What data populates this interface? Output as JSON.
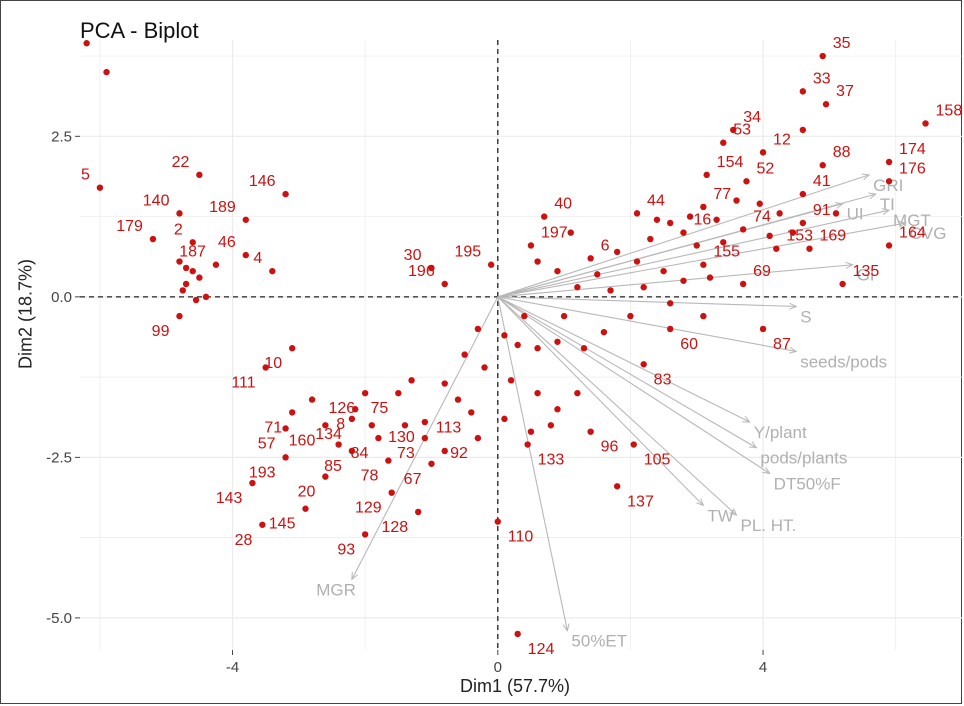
{
  "chart_data": {
    "type": "scatter",
    "title": "PCA - Biplot",
    "xlabel": "Dim1 (57.7%)",
    "ylabel": "Dim2 (18.7%)",
    "xlim": [
      -6.3,
      7.0
    ],
    "ylim": [
      -5.5,
      4.0
    ],
    "xticks": [
      -4,
      0,
      4
    ],
    "yticks": [
      -5.0,
      -2.5,
      0.0,
      2.5
    ],
    "ytick_labels": [
      "-5.0",
      "-2.5",
      "0.0",
      "2.5"
    ],
    "grid": true,
    "reference_lines": {
      "x": 0,
      "y": 0
    },
    "colors": {
      "points": "#cc1111",
      "vectors": "#b8b8b8",
      "point_labels": "#cc1111",
      "grid": "#ebebeb"
    },
    "points": [
      {
        "label": "35",
        "x": 4.9,
        "y": 3.75
      },
      {
        "label": "33",
        "x": 4.6,
        "y": 3.2
      },
      {
        "label": "37",
        "x": 4.95,
        "y": 3.0
      },
      {
        "label": "158",
        "x": 6.45,
        "y": 2.7
      },
      {
        "label": "34",
        "x": 3.55,
        "y": 2.6
      },
      {
        "label": "53",
        "x": 3.4,
        "y": 2.4
      },
      {
        "label": "12",
        "x": 4.0,
        "y": 2.25
      },
      {
        "label": "88",
        "x": 4.9,
        "y": 2.05
      },
      {
        "label": "174",
        "x": 5.9,
        "y": 2.1
      },
      {
        "label": "154",
        "x": 3.15,
        "y": 1.9
      },
      {
        "label": "52",
        "x": 3.75,
        "y": 1.8
      },
      {
        "label": "41",
        "x": 4.6,
        "y": 1.6
      },
      {
        "label": "176",
        "x": 5.9,
        "y": 1.8
      },
      {
        "label": "77",
        "x": 3.1,
        "y": 1.4
      },
      {
        "label": "44",
        "x": 2.1,
        "y": 1.3
      },
      {
        "label": "91",
        "x": 4.6,
        "y": 1.15
      },
      {
        "label": "74",
        "x": 3.7,
        "y": 1.05
      },
      {
        "label": "16",
        "x": 2.8,
        "y": 1.0
      },
      {
        "label": "153",
        "x": 4.2,
        "y": 0.75
      },
      {
        "label": "169",
        "x": 4.7,
        "y": 0.75
      },
      {
        "label": "164",
        "x": 5.9,
        "y": 0.8
      },
      {
        "label": "155",
        "x": 3.1,
        "y": 0.5
      },
      {
        "label": "69",
        "x": 3.7,
        "y": 0.2
      },
      {
        "label": "135",
        "x": 5.2,
        "y": 0.2
      },
      {
        "label": "40",
        "x": 0.7,
        "y": 1.25
      },
      {
        "label": "197",
        "x": 0.5,
        "y": 0.8
      },
      {
        "label": "6",
        "x": 1.4,
        "y": 0.6
      },
      {
        "label": "195",
        "x": -0.1,
        "y": 0.5
      },
      {
        "label": "30",
        "x": -1.0,
        "y": 0.45
      },
      {
        "label": "196",
        "x": -0.8,
        "y": 0.2
      },
      {
        "label": "87",
        "x": 4.0,
        "y": -0.5
      },
      {
        "label": "60",
        "x": 2.6,
        "y": -0.5
      },
      {
        "label": "83",
        "x": 2.2,
        "y": -1.05
      },
      {
        "label": "113",
        "x": -0.4,
        "y": -1.8
      },
      {
        "label": "96",
        "x": 1.4,
        "y": -2.1
      },
      {
        "label": "105",
        "x": 2.05,
        "y": -2.3
      },
      {
        "label": "133",
        "x": 0.45,
        "y": -2.3
      },
      {
        "label": "137",
        "x": 1.8,
        "y": -2.95
      },
      {
        "label": "110",
        "x": 0.0,
        "y": -3.5
      },
      {
        "label": "124",
        "x": 0.3,
        "y": -5.25
      },
      {
        "label": "5",
        "x": -6.0,
        "y": 1.7
      },
      {
        "label": "22",
        "x": -4.5,
        "y": 1.9
      },
      {
        "label": "146",
        "x": -3.2,
        "y": 1.6
      },
      {
        "label": "140",
        "x": -4.8,
        "y": 1.3
      },
      {
        "label": "189",
        "x": -3.8,
        "y": 1.2
      },
      {
        "label": "179",
        "x": -5.2,
        "y": 0.9
      },
      {
        "label": "2",
        "x": -4.6,
        "y": 0.85
      },
      {
        "label": "46",
        "x": -3.8,
        "y": 0.65
      },
      {
        "label": "187",
        "x": -4.25,
        "y": 0.5
      },
      {
        "label": "4",
        "x": -3.4,
        "y": 0.4
      },
      {
        "label": "99",
        "x": -4.8,
        "y": -0.3
      },
      {
        "label": "10",
        "x": -3.1,
        "y": -0.8
      },
      {
        "label": "111",
        "x": -3.5,
        "y": -1.1
      },
      {
        "label": "126",
        "x": -2.0,
        "y": -1.5
      },
      {
        "label": "8",
        "x": -2.15,
        "y": -1.75
      },
      {
        "label": "75",
        "x": -1.5,
        "y": -1.5
      },
      {
        "label": "71",
        "x": -3.1,
        "y": -1.8
      },
      {
        "label": "134",
        "x": -2.2,
        "y": -1.9
      },
      {
        "label": "130",
        "x": -1.1,
        "y": -1.95
      },
      {
        "label": "57",
        "x": -3.2,
        "y": -2.05
      },
      {
        "label": "160",
        "x": -2.6,
        "y": -2.0
      },
      {
        "label": "84",
        "x": -1.8,
        "y": -2.2
      },
      {
        "label": "73",
        "x": -1.1,
        "y": -2.2
      },
      {
        "label": "92",
        "x": -0.3,
        "y": -2.2
      },
      {
        "label": "85",
        "x": -2.2,
        "y": -2.4
      },
      {
        "label": "193",
        "x": -3.2,
        "y": -2.5
      },
      {
        "label": "78",
        "x": -1.65,
        "y": -2.55
      },
      {
        "label": "67",
        "x": -1.0,
        "y": -2.6
      },
      {
        "label": "20",
        "x": -2.6,
        "y": -2.8
      },
      {
        "label": "143",
        "x": -3.7,
        "y": -2.9
      },
      {
        "label": "129",
        "x": -1.6,
        "y": -3.05
      },
      {
        "label": "145",
        "x": -2.9,
        "y": -3.3
      },
      {
        "label": "128",
        "x": -1.2,
        "y": -3.35
      },
      {
        "label": "28",
        "x": -3.55,
        "y": -3.55
      },
      {
        "label": "93",
        "x": -2.0,
        "y": -3.7
      }
    ],
    "unlabeled_points": [
      {
        "x": -6.2,
        "y": 3.95
      },
      {
        "x": -5.9,
        "y": 3.5
      },
      {
        "x": -4.8,
        "y": 0.55
      },
      {
        "x": -4.7,
        "y": 0.45
      },
      {
        "x": -4.6,
        "y": 0.4
      },
      {
        "x": -4.5,
        "y": 0.3
      },
      {
        "x": -4.75,
        "y": 0.1
      },
      {
        "x": -4.7,
        "y": 0.2
      },
      {
        "x": -4.55,
        "y": -0.05
      },
      {
        "x": -4.4,
        "y": 0.0
      },
      {
        "x": 2.4,
        "y": 1.2
      },
      {
        "x": 2.6,
        "y": 1.15
      },
      {
        "x": 2.9,
        "y": 1.25
      },
      {
        "x": 3.3,
        "y": 1.2
      },
      {
        "x": 3.6,
        "y": 1.5
      },
      {
        "x": 3.95,
        "y": 1.45
      },
      {
        "x": 4.25,
        "y": 1.3
      },
      {
        "x": 4.45,
        "y": 1.0
      },
      {
        "x": 3.4,
        "y": 0.85
      },
      {
        "x": 3.0,
        "y": 0.8
      },
      {
        "x": 2.3,
        "y": 0.9
      },
      {
        "x": 1.8,
        "y": 0.7
      },
      {
        "x": 2.1,
        "y": 0.55
      },
      {
        "x": 2.5,
        "y": 0.4
      },
      {
        "x": 2.8,
        "y": 0.25
      },
      {
        "x": 3.2,
        "y": 0.3
      },
      {
        "x": 1.5,
        "y": 0.35
      },
      {
        "x": 1.2,
        "y": 0.15
      },
      {
        "x": 0.9,
        "y": 0.4
      },
      {
        "x": 0.6,
        "y": 0.55
      },
      {
        "x": 1.7,
        "y": 0.1
      },
      {
        "x": 2.2,
        "y": 0.15
      },
      {
        "x": 2.6,
        "y": -0.1
      },
      {
        "x": 3.1,
        "y": -0.3
      },
      {
        "x": 2.0,
        "y": -0.3
      },
      {
        "x": 1.6,
        "y": -0.55
      },
      {
        "x": 1.3,
        "y": -0.8
      },
      {
        "x": 0.9,
        "y": -0.7
      },
      {
        "x": 0.6,
        "y": -0.8
      },
      {
        "x": 0.3,
        "y": -0.75
      },
      {
        "x": 0.1,
        "y": -0.6
      },
      {
        "x": 1.0,
        "y": -0.3
      },
      {
        "x": 0.4,
        "y": -0.3
      },
      {
        "x": -0.3,
        "y": -0.5
      },
      {
        "x": -0.5,
        "y": -0.9
      },
      {
        "x": -0.2,
        "y": -1.1
      },
      {
        "x": 0.2,
        "y": -1.3
      },
      {
        "x": 0.6,
        "y": -1.5
      },
      {
        "x": 0.9,
        "y": -1.75
      },
      {
        "x": 1.2,
        "y": -1.5
      },
      {
        "x": -0.8,
        "y": -1.35
      },
      {
        "x": -1.3,
        "y": -1.3
      },
      {
        "x": -0.6,
        "y": -1.6
      },
      {
        "x": 0.1,
        "y": -1.9
      },
      {
        "x": 0.5,
        "y": -2.1
      },
      {
        "x": -2.8,
        "y": -1.6
      },
      {
        "x": -1.9,
        "y": -2.0
      },
      {
        "x": -2.4,
        "y": -2.3
      },
      {
        "x": -1.4,
        "y": -2.0
      },
      {
        "x": -0.8,
        "y": -2.4
      },
      {
        "x": 0.8,
        "y": -2.0
      },
      {
        "x": 4.6,
        "y": 2.6
      },
      {
        "x": 5.1,
        "y": 1.3
      },
      {
        "x": 4.1,
        "y": 0.95
      },
      {
        "x": 1.1,
        "y": 1.0
      }
    ],
    "vectors": [
      {
        "label": "GRI",
        "x": 5.6,
        "y": 1.9
      },
      {
        "label": "TI",
        "x": 5.7,
        "y": 1.6
      },
      {
        "label": "UI",
        "x": 5.2,
        "y": 1.45
      },
      {
        "label": "MGT",
        "x": 5.9,
        "y": 1.35
      },
      {
        "label": "CVG",
        "x": 6.15,
        "y": 1.15
      },
      {
        "label": "GI",
        "x": 5.35,
        "y": 0.5
      },
      {
        "label": "S",
        "x": 4.5,
        "y": -0.15
      },
      {
        "label": "seeds/pods",
        "x": 4.5,
        "y": -0.85
      },
      {
        "label": "Y/plant",
        "x": 3.8,
        "y": -1.95
      },
      {
        "label": "pods/plants",
        "x": 3.9,
        "y": -2.35
      },
      {
        "label": "DT50%F",
        "x": 4.1,
        "y": -2.75
      },
      {
        "label": "PL. HT.",
        "x": 3.6,
        "y": -3.4
      },
      {
        "label": "TW",
        "x": 3.1,
        "y": -3.25
      },
      {
        "label": "50%ET",
        "x": 1.05,
        "y": -5.2
      },
      {
        "label": "MGR",
        "x": -2.2,
        "y": -4.4
      }
    ]
  }
}
